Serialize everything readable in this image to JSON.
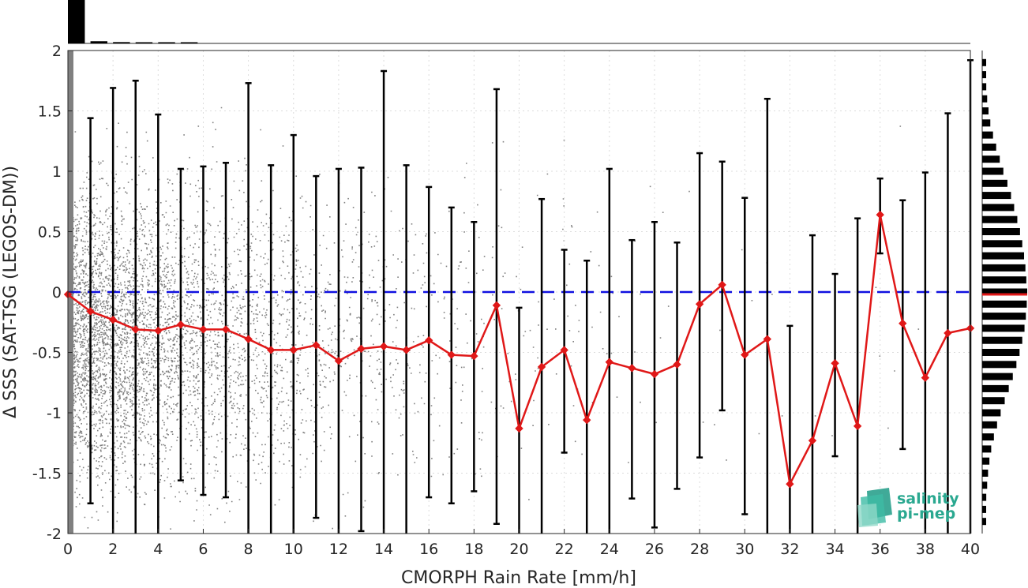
{
  "chart_data": {
    "type": "line",
    "xlabel": "CMORPH Rain Rate [mm/h]",
    "ylabel": "Δ SSS (SAT-TSG (LEGOS-DM))",
    "xlim": [
      0,
      40
    ],
    "ylim": [
      -2,
      2
    ],
    "xticks": [
      "0",
      "2",
      "4",
      "6",
      "8",
      "10",
      "12",
      "14",
      "16",
      "18",
      "20",
      "22",
      "24",
      "26",
      "28",
      "30",
      "32",
      "34",
      "36",
      "38",
      "40"
    ],
    "yticks": [
      "2",
      "1.5",
      "1",
      "0.5",
      "0",
      "-0.5",
      "-1",
      "-1.5",
      "-2"
    ],
    "grid": true,
    "reference_line": {
      "y": 0,
      "style": "dashed",
      "color": "#1010e0"
    },
    "series": [
      {
        "style": "line-with-diamond-markers",
        "color": "#e01818",
        "x": [
          0,
          1,
          2,
          3,
          4,
          5,
          6,
          7,
          8,
          9,
          10,
          11,
          12,
          13,
          14,
          15,
          16,
          17,
          18,
          19,
          20,
          21,
          22,
          23,
          24,
          25,
          26,
          27,
          28,
          29,
          30,
          31,
          32,
          33,
          34,
          35,
          36,
          37,
          38,
          39,
          40
        ],
        "values": [
          -0.02,
          -0.16,
          -0.23,
          -0.31,
          -0.32,
          -0.27,
          -0.31,
          -0.31,
          -0.39,
          -0.48,
          -0.48,
          -0.44,
          -0.57,
          -0.47,
          -0.45,
          -0.48,
          -0.4,
          -0.52,
          -0.53,
          -0.11,
          -1.13,
          -0.62,
          -0.48,
          -1.06,
          -0.58,
          -0.63,
          -0.68,
          -0.6,
          -0.1,
          0.06,
          -0.52,
          -0.39,
          -1.59,
          -1.23,
          -0.59,
          -1.11,
          0.64,
          -0.26,
          -0.71,
          -0.34,
          -0.3
        ]
      }
    ],
    "error_bars": {
      "color": "#000000",
      "x": [
        1,
        2,
        3,
        4,
        5,
        6,
        7,
        8,
        9,
        10,
        11,
        12,
        13,
        14,
        15,
        16,
        17,
        18,
        19,
        20,
        21,
        22,
        23,
        24,
        25,
        26,
        27,
        28,
        29,
        30,
        31,
        32,
        33,
        34,
        35,
        36,
        37,
        38,
        39,
        40
      ],
      "upper": [
        1.44,
        1.69,
        1.75,
        1.47,
        1.02,
        1.04,
        1.07,
        1.73,
        1.05,
        1.3,
        0.96,
        1.02,
        1.03,
        1.83,
        1.05,
        0.87,
        0.7,
        0.58,
        1.68,
        -0.13,
        0.77,
        0.35,
        0.26,
        1.02,
        0.43,
        0.58,
        0.41,
        1.15,
        1.08,
        0.78,
        1.6,
        -0.28,
        0.47,
        0.15,
        0.61,
        0.94,
        0.76,
        0.99,
        1.48,
        1.92
      ],
      "lower": [
        -1.75,
        -2.0,
        -2.0,
        -2.0,
        -1.56,
        -1.68,
        -1.7,
        -2.0,
        -2.0,
        -2.0,
        -1.87,
        -2.0,
        -1.98,
        -2.0,
        -2.0,
        -1.7,
        -1.75,
        -1.65,
        -1.92,
        -2.0,
        -2.0,
        -1.33,
        -2.0,
        -2.0,
        -1.71,
        -1.95,
        -1.63,
        -1.37,
        -0.98,
        -1.84,
        -2.0,
        -2.0,
        -2.0,
        -1.36,
        -2.0,
        0.32,
        -1.3,
        -2.0,
        -2.0,
        -2.0
      ]
    },
    "scatter_background": {
      "color": "#808080",
      "description": "dense scatter of individual samples"
    },
    "top_marginal_histogram": {
      "color": "#000000",
      "bins_x": [
        0,
        1,
        2,
        3,
        4,
        5
      ],
      "relative_heights": [
        1.0,
        0.05,
        0.03,
        0.02,
        0.015,
        0.01
      ]
    },
    "right_marginal_histogram": {
      "color": "#000000",
      "bins_y": [
        1.9,
        1.8,
        1.7,
        1.6,
        1.5,
        1.4,
        1.3,
        1.2,
        1.1,
        1.0,
        0.9,
        0.8,
        0.7,
        0.6,
        0.5,
        0.4,
        0.3,
        0.2,
        0.1,
        0.0,
        -0.1,
        -0.2,
        -0.3,
        -0.4,
        -0.5,
        -0.6,
        -0.7,
        -0.8,
        -0.9,
        -1.0,
        -1.1,
        -1.2,
        -1.3,
        -1.4,
        -1.5,
        -1.6,
        -1.7,
        -1.8,
        -1.9
      ],
      "relative_counts": [
        0.07,
        0.08,
        0.09,
        0.11,
        0.14,
        0.18,
        0.24,
        0.31,
        0.39,
        0.47,
        0.56,
        0.64,
        0.71,
        0.78,
        0.84,
        0.89,
        0.93,
        0.96,
        0.98,
        1.0,
        0.99,
        0.97,
        0.94,
        0.89,
        0.83,
        0.76,
        0.68,
        0.59,
        0.5,
        0.41,
        0.33,
        0.26,
        0.2,
        0.16,
        0.13,
        0.11,
        0.09,
        0.08,
        0.07
      ],
      "mean_line_y": -0.02,
      "mean_line_color": "#e01818"
    }
  },
  "logo": {
    "line1": "salinity",
    "line2": "pi-mep"
  }
}
